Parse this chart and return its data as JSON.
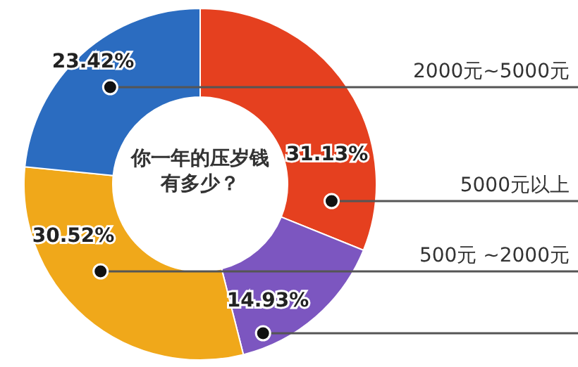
{
  "chart_data": {
    "type": "donut",
    "title": "你一年的压岁钱有多少？",
    "categories": [
      "5000元以上",
      null,
      "500元 ~2000元",
      "2000元~5000元"
    ],
    "values": [
      31.13,
      14.93,
      30.52,
      23.42
    ],
    "colors": [
      "#e5401f",
      "#7c56c0",
      "#f0a81a",
      "#2b6cc0"
    ],
    "value_labels": [
      "31.13%",
      "14.93%",
      "30.52%",
      "23.42%"
    ]
  }
}
